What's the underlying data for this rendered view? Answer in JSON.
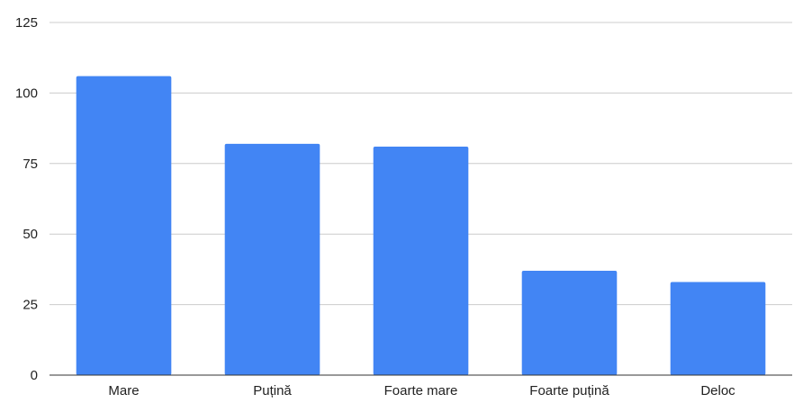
{
  "chart_data": {
    "type": "bar",
    "title": "",
    "xlabel": "",
    "ylabel": "",
    "categories": [
      "Mare",
      "Puțină",
      "Foarte mare",
      "Foarte puțină",
      "Deloc"
    ],
    "values": [
      106,
      82,
      81,
      37,
      33
    ],
    "ylim": [
      0,
      125
    ],
    "yticks": [
      0,
      25,
      50,
      75,
      100,
      125
    ],
    "grid": true,
    "legend": "none",
    "bar_color": "#4285f4"
  }
}
